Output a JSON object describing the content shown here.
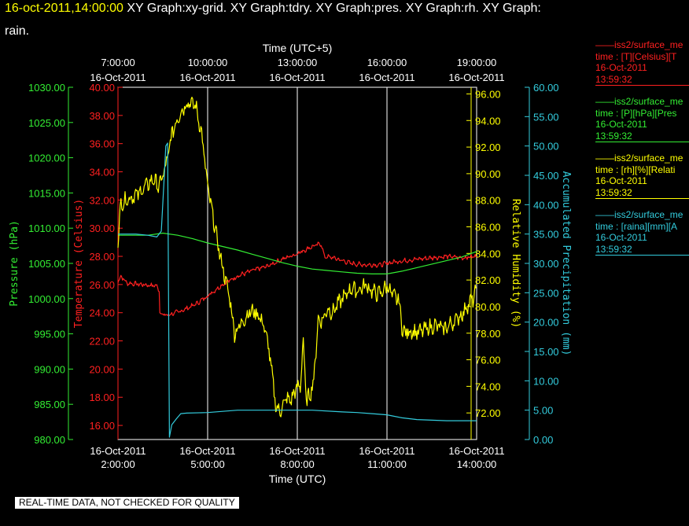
{
  "header": {
    "timestamp": "16-oct-2011,14:00:00",
    "graphs_line1": " XY Graph:xy-grid.  XY Graph:tdry.  XY Graph:pres.  XY Graph:rh.  XY Graph:",
    "graphs_line2": "rain."
  },
  "footer": {
    "note": "REAL-TIME DATA, NOT CHECKED FOR QUALITY"
  },
  "legend": [
    {
      "name": "iss2/surface_me",
      "prefix": "——",
      "desc": "time : [T][Celsius][T",
      "date": "16-Oct-2011",
      "time": "13:59:32",
      "color": "#ff2020"
    },
    {
      "name": "iss2/surface_me",
      "prefix": "——",
      "desc": "time : [P][hPa][Pres",
      "date": "16-Oct-2011",
      "time": "13:59:32",
      "color": "#33ee33"
    },
    {
      "name": "iss2/surface_me",
      "prefix": "——",
      "desc": "time : [rh][%][Relati",
      "date": "16-Oct-2011",
      "time": "13:59:32",
      "color": "#ffff00"
    },
    {
      "name": "iss2/surface_me",
      "prefix": "——",
      "desc": "time : [raina][mm][A",
      "date": "16-Oct-2011",
      "time": "13:59:32",
      "color": "#33ccdd"
    }
  ],
  "chart_data": {
    "type": "line",
    "grid": "vertical lines at bottom-axis ticks",
    "x_bottom": {
      "label": "Time (UTC)",
      "range": [
        "02:00",
        "14:00"
      ],
      "ticks": [
        {
          "date": "16-Oct-2011",
          "time": "2:00:00"
        },
        {
          "date": "16-Oct-2011",
          "time": "5:00:00"
        },
        {
          "date": "16-Oct-2011",
          "time": "8:00:00"
        },
        {
          "date": "16-Oct-2011",
          "time": "11:00:00"
        },
        {
          "date": "16-Oct-2011",
          "time": "14:00:00"
        }
      ]
    },
    "x_top": {
      "label": "Time (UTC+5)",
      "ticks": [
        {
          "time": "7:00:00",
          "date": "16-Oct-2011"
        },
        {
          "time": "10:00:00",
          "date": "16-Oct-2011"
        },
        {
          "time": "13:00:00",
          "date": "16-Oct-2011"
        },
        {
          "time": "16:00:00",
          "date": "16-Oct-2011"
        },
        {
          "time": "19:00:00",
          "date": "16-Oct-2011"
        }
      ]
    },
    "axes": {
      "pressure": {
        "label": "Pressure (hPa)",
        "color": "#33ee33",
        "range": [
          980,
          1030
        ],
        "ticks": [
          "980.00",
          "985.00",
          "990.00",
          "995.00",
          "1000.00",
          "1005.00",
          "1010.00",
          "1015.00",
          "1020.00",
          "1025.00",
          "1030.00"
        ]
      },
      "temperature": {
        "label": "Temperature (Celsius)",
        "color": "#ff2020",
        "range": [
          15,
          40
        ],
        "ticks": [
          "16.00",
          "18.00",
          "20.00",
          "22.00",
          "24.00",
          "26.00",
          "28.00",
          "30.00",
          "32.00",
          "34.00",
          "36.00",
          "38.00",
          "40.00"
        ]
      },
      "humidity": {
        "label": "Relative Humidity (%)",
        "color": "#ffff00",
        "range": [
          70,
          96.5
        ],
        "ticks": [
          "72.00",
          "74.00",
          "76.00",
          "78.00",
          "80.00",
          "82.00",
          "84.00",
          "86.00",
          "88.00",
          "90.00",
          "92.00",
          "94.00",
          "96.00"
        ]
      },
      "precip": {
        "label": "Accumulated Precipitation (mm)",
        "color": "#33ccdd",
        "range": [
          0,
          60
        ],
        "ticks": [
          "0.00",
          "5.00",
          "10.00",
          "15.00",
          "20.00",
          "25.00",
          "30.00",
          "35.00",
          "40.00",
          "45.00",
          "50.00",
          "55.00",
          "60.00"
        ]
      }
    },
    "series": [
      {
        "name": "Temperature",
        "axis": "temperature",
        "color": "#ff2020",
        "points": [
          [
            2.0,
            26.2
          ],
          [
            2.1,
            26.6
          ],
          [
            2.3,
            26.1
          ],
          [
            2.8,
            26.0
          ],
          [
            3.3,
            25.9
          ],
          [
            3.38,
            25.6
          ],
          [
            3.4,
            24.0
          ],
          [
            3.6,
            23.8
          ],
          [
            3.8,
            23.9
          ],
          [
            4.2,
            24.2
          ],
          [
            4.6,
            24.6
          ],
          [
            5.0,
            25.2
          ],
          [
            5.5,
            26.0
          ],
          [
            6.0,
            26.6
          ],
          [
            6.5,
            27.0
          ],
          [
            7.0,
            27.3
          ],
          [
            7.5,
            27.8
          ],
          [
            8.0,
            28.2
          ],
          [
            8.5,
            28.7
          ],
          [
            8.8,
            28.9
          ],
          [
            8.9,
            28.0
          ],
          [
            9.2,
            27.9
          ],
          [
            9.8,
            27.5
          ],
          [
            10.2,
            27.4
          ],
          [
            10.8,
            27.4
          ],
          [
            11.2,
            27.6
          ],
          [
            11.6,
            27.7
          ],
          [
            12.0,
            27.8
          ],
          [
            12.5,
            27.9
          ],
          [
            13.0,
            28.0
          ],
          [
            13.5,
            27.9
          ],
          [
            14.0,
            28.0
          ]
        ],
        "noise": 0.12,
        "wobble": 0.08
      },
      {
        "name": "Pressure",
        "axis": "pressure",
        "color": "#33ee33",
        "points": [
          [
            2.0,
            1009.0
          ],
          [
            2.5,
            1009.0
          ],
          [
            3.0,
            1009.0
          ],
          [
            3.5,
            1009.3
          ],
          [
            4.0,
            1009.0
          ],
          [
            4.5,
            1008.5
          ],
          [
            5.0,
            1007.9
          ],
          [
            5.5,
            1007.4
          ],
          [
            6.0,
            1006.9
          ],
          [
            6.5,
            1006.3
          ],
          [
            7.0,
            1005.7
          ],
          [
            7.5,
            1005.1
          ],
          [
            8.0,
            1004.6
          ],
          [
            8.5,
            1004.2
          ],
          [
            9.0,
            1004.0
          ],
          [
            9.5,
            1003.8
          ],
          [
            10.0,
            1003.6
          ],
          [
            10.5,
            1003.5
          ],
          [
            11.0,
            1003.5
          ],
          [
            11.5,
            1003.9
          ],
          [
            12.0,
            1004.4
          ],
          [
            12.5,
            1004.9
          ],
          [
            13.0,
            1005.4
          ],
          [
            13.5,
            1005.9
          ],
          [
            14.0,
            1006.7
          ]
        ],
        "noise": 0.0,
        "wobble": 0.0
      },
      {
        "name": "Relative Humidity",
        "axis": "humidity",
        "color": "#ffff00",
        "points": [
          [
            2.0,
            85.0
          ],
          [
            2.1,
            87.8
          ],
          [
            2.4,
            88.2
          ],
          [
            2.7,
            88.5
          ],
          [
            2.9,
            89.0
          ],
          [
            3.2,
            89.6
          ],
          [
            3.35,
            89.0
          ],
          [
            3.5,
            89.8
          ],
          [
            3.65,
            91.0
          ],
          [
            3.8,
            93.0
          ],
          [
            4.0,
            94.2
          ],
          [
            4.2,
            95.0
          ],
          [
            4.35,
            95.4
          ],
          [
            4.6,
            95.1
          ],
          [
            4.8,
            93.0
          ],
          [
            5.0,
            89.0
          ],
          [
            5.2,
            86.5
          ],
          [
            5.4,
            84.0
          ],
          [
            5.6,
            82.0
          ],
          [
            5.75,
            80.5
          ],
          [
            5.9,
            78.0
          ],
          [
            6.05,
            78.5
          ],
          [
            6.2,
            79.0
          ],
          [
            6.4,
            79.6
          ],
          [
            6.6,
            79.6
          ],
          [
            6.8,
            79.0
          ],
          [
            6.95,
            78.0
          ],
          [
            7.1,
            76.0
          ],
          [
            7.2,
            74.0
          ],
          [
            7.3,
            72.3
          ],
          [
            7.45,
            72.2
          ],
          [
            7.6,
            73.0
          ],
          [
            7.8,
            73.0
          ],
          [
            7.95,
            73.8
          ],
          [
            8.1,
            74.0
          ],
          [
            8.2,
            77.5
          ],
          [
            8.3,
            72.8
          ],
          [
            8.45,
            73.6
          ],
          [
            8.55,
            74.5
          ],
          [
            8.7,
            79.0
          ],
          [
            8.85,
            79.0
          ],
          [
            9.0,
            79.8
          ],
          [
            9.2,
            79.6
          ],
          [
            9.35,
            80.2
          ],
          [
            9.6,
            80.8
          ],
          [
            9.8,
            81.4
          ],
          [
            10.0,
            81.2
          ],
          [
            10.3,
            81.6
          ],
          [
            10.6,
            81.0
          ],
          [
            10.8,
            81.0
          ],
          [
            11.0,
            81.6
          ],
          [
            11.2,
            80.8
          ],
          [
            11.4,
            80.5
          ],
          [
            11.5,
            78.5
          ],
          [
            11.6,
            78.0
          ],
          [
            11.8,
            78.2
          ],
          [
            12.0,
            78.0
          ],
          [
            12.3,
            78.3
          ],
          [
            12.6,
            78.6
          ],
          [
            12.9,
            78.3
          ],
          [
            13.2,
            78.8
          ],
          [
            13.5,
            79.4
          ],
          [
            13.75,
            80.3
          ],
          [
            13.9,
            80.6
          ],
          [
            14.0,
            81.4
          ]
        ],
        "noise": 0.45,
        "wobble": 0.25
      },
      {
        "name": "Accumulated Precipitation",
        "axis": "precip",
        "color": "#33ccdd",
        "points": [
          [
            2.0,
            35.0
          ],
          [
            2.6,
            35.0
          ],
          [
            3.0,
            34.8
          ],
          [
            3.3,
            34.5
          ],
          [
            3.45,
            35.5
          ],
          [
            3.55,
            45.0
          ],
          [
            3.6,
            50.0
          ],
          [
            3.66,
            50.5
          ],
          [
            3.72,
            0.4
          ],
          [
            3.8,
            2.5
          ],
          [
            3.95,
            3.5
          ],
          [
            4.1,
            4.4
          ],
          [
            4.3,
            4.5
          ],
          [
            5.0,
            4.6
          ],
          [
            6.0,
            5.0
          ],
          [
            7.0,
            5.0
          ],
          [
            8.0,
            5.0
          ],
          [
            8.5,
            5.0
          ],
          [
            9.5,
            4.7
          ],
          [
            10.0,
            4.6
          ],
          [
            10.5,
            4.4
          ],
          [
            11.0,
            4.2
          ],
          [
            11.5,
            3.7
          ],
          [
            12.0,
            3.4
          ],
          [
            12.5,
            3.3
          ],
          [
            13.0,
            3.2
          ],
          [
            13.5,
            3.2
          ],
          [
            14.0,
            3.2
          ]
        ],
        "noise": 0.0,
        "wobble": 0.0
      }
    ]
  }
}
